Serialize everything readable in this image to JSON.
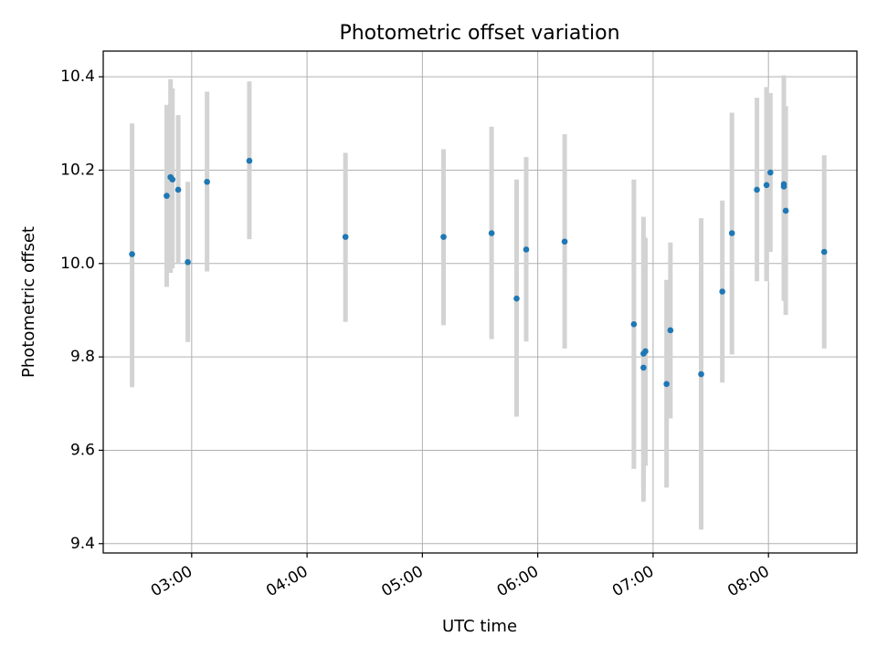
{
  "chart_data": {
    "type": "scatter",
    "title": "Photometric offset variation",
    "xlabel": "UTC time",
    "ylabel": "Photometric offset",
    "x_axis_kind": "time",
    "xlim": [
      "02:14",
      "08:46"
    ],
    "ylim": [
      9.38,
      10.455
    ],
    "xticks": [
      "03:00",
      "04:00",
      "05:00",
      "06:00",
      "07:00",
      "08:00"
    ],
    "yticks": [
      9.4,
      9.6,
      9.8,
      10.0,
      10.2,
      10.4
    ],
    "grid": true,
    "colors": {
      "point": "#1f77b4",
      "errorbar": "#d3d3d3",
      "grid": "#b0b0b0"
    },
    "points": [
      {
        "x": "02:29",
        "y": 10.02,
        "low": 9.735,
        "high": 10.3
      },
      {
        "x": "02:47",
        "y": 10.145,
        "low": 9.95,
        "high": 10.34
      },
      {
        "x": "02:49",
        "y": 10.185,
        "low": 9.98,
        "high": 10.395
      },
      {
        "x": "02:50",
        "y": 10.18,
        "low": 9.99,
        "high": 10.375
      },
      {
        "x": "02:53",
        "y": 10.158,
        "low": 10.0,
        "high": 10.318
      },
      {
        "x": "02:58",
        "y": 10.003,
        "low": 9.832,
        "high": 10.175
      },
      {
        "x": "03:08",
        "y": 10.175,
        "low": 9.983,
        "high": 10.368
      },
      {
        "x": "03:30",
        "y": 10.22,
        "low": 10.052,
        "high": 10.39
      },
      {
        "x": "04:20",
        "y": 10.057,
        "low": 9.875,
        "high": 10.237
      },
      {
        "x": "05:11",
        "y": 10.057,
        "low": 9.868,
        "high": 10.245
      },
      {
        "x": "05:36",
        "y": 10.065,
        "low": 9.838,
        "high": 10.293
      },
      {
        "x": "05:49",
        "y": 9.925,
        "low": 9.672,
        "high": 10.18
      },
      {
        "x": "05:54",
        "y": 10.03,
        "low": 9.833,
        "high": 10.228
      },
      {
        "x": "06:14",
        "y": 10.047,
        "low": 9.818,
        "high": 10.277
      },
      {
        "x": "06:50",
        "y": 9.87,
        "low": 9.56,
        "high": 10.18
      },
      {
        "x": "06:55",
        "y": 9.807,
        "low": 9.49,
        "high": 10.1
      },
      {
        "x": "06:55",
        "y": 9.777,
        "low": 9.52,
        "high": 10.06
      },
      {
        "x": "06:56",
        "y": 9.812,
        "low": 9.567,
        "high": 10.055
      },
      {
        "x": "07:07",
        "y": 9.742,
        "low": 9.52,
        "high": 9.965
      },
      {
        "x": "07:09",
        "y": 9.857,
        "low": 9.668,
        "high": 10.045
      },
      {
        "x": "07:25",
        "y": 9.763,
        "low": 9.43,
        "high": 10.097
      },
      {
        "x": "07:36",
        "y": 9.94,
        "low": 9.745,
        "high": 10.135
      },
      {
        "x": "07:41",
        "y": 10.065,
        "low": 9.805,
        "high": 10.323
      },
      {
        "x": "07:54",
        "y": 10.158,
        "low": 9.962,
        "high": 10.355
      },
      {
        "x": "07:59",
        "y": 10.168,
        "low": 9.962,
        "high": 10.378
      },
      {
        "x": "08:01",
        "y": 10.195,
        "low": 10.025,
        "high": 10.365
      },
      {
        "x": "08:08",
        "y": 10.17,
        "low": 9.935,
        "high": 10.403
      },
      {
        "x": "08:08",
        "y": 10.165,
        "low": 9.92,
        "high": 10.4
      },
      {
        "x": "08:09",
        "y": 10.113,
        "low": 9.89,
        "high": 10.337
      },
      {
        "x": "08:29",
        "y": 10.025,
        "low": 9.818,
        "high": 10.232
      }
    ]
  }
}
